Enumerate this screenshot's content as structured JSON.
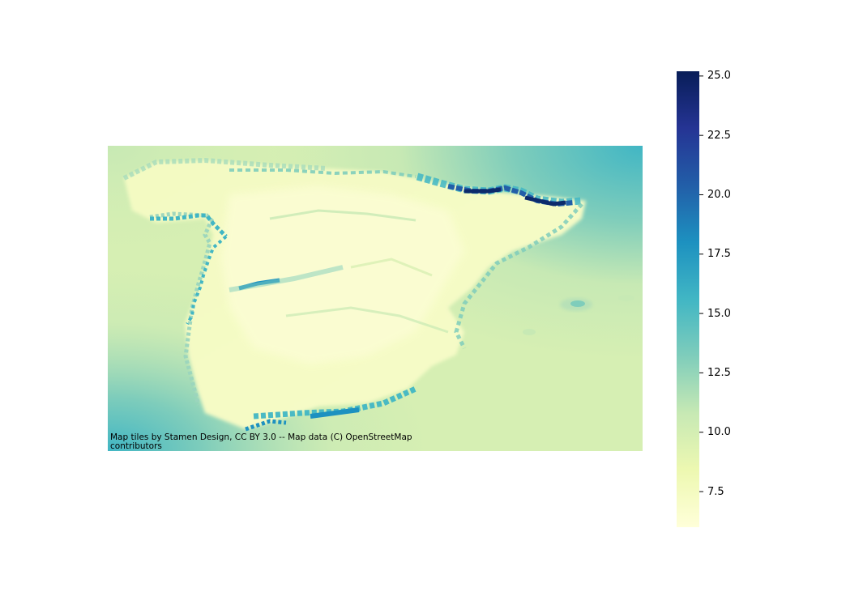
{
  "map": {
    "attribution": "Map tiles by Stamen Design, CC BY 3.0 -- Map data (C) OpenStreetMap\ncontributors",
    "colormap": "YlGnBu",
    "colors": {
      "low": "#ffffd9",
      "c1": "#edf8b1",
      "c2": "#c7e9b4",
      "c3": "#7fcdbb",
      "c4": "#41b6c4",
      "c5": "#1d91c0",
      "c6": "#225ea8",
      "c7": "#253494",
      "high": "#081d58"
    }
  },
  "colorbar": {
    "vmin": 6.0,
    "vmax": 25.2,
    "ticks": [
      {
        "value": 7.5,
        "label": "7.5"
      },
      {
        "value": 10.0,
        "label": "10.0"
      },
      {
        "value": 12.5,
        "label": "12.5"
      },
      {
        "value": 15.0,
        "label": "15.0"
      },
      {
        "value": 17.5,
        "label": "17.5"
      },
      {
        "value": 20.0,
        "label": "20.0"
      },
      {
        "value": 22.5,
        "label": "22.5"
      },
      {
        "value": 25.0,
        "label": "25.0"
      }
    ]
  }
}
